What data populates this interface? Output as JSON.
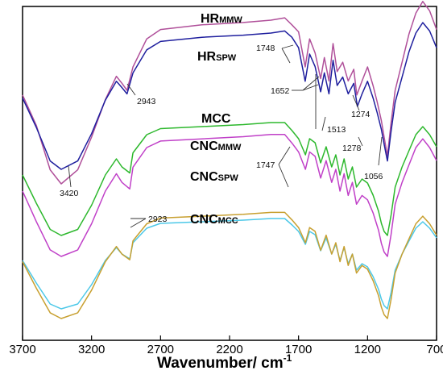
{
  "chart_data": {
    "type": "line",
    "xlabel": "Wavenumber/ cm",
    "xlabel_sup": "-1",
    "xlim": [
      3700,
      700
    ],
    "x_ticks": [
      3700,
      3200,
      2700,
      2200,
      1700,
      1200,
      700
    ],
    "y_ticks_shown": false,
    "legend": "labels placed above curves",
    "series": [
      {
        "name": "HR",
        "name_sub": "MMW",
        "color": "#b0509a",
        "x": [
          3700,
          3600,
          3500,
          3420,
          3300,
          3200,
          3100,
          3020,
          2980,
          2943,
          2900,
          2800,
          2700,
          2400,
          2100,
          1900,
          1800,
          1748,
          1700,
          1652,
          1620,
          1580,
          1540,
          1513,
          1480,
          1450,
          1420,
          1380,
          1340,
          1300,
          1278,
          1240,
          1200,
          1160,
          1130,
          1100,
          1080,
          1056,
          1030,
          1000,
          950,
          900,
          850,
          800,
          750,
          700
        ],
        "y": [
          38,
          25,
          6,
          0,
          6,
          20,
          36,
          46,
          43,
          40,
          50,
          62,
          66,
          68,
          69,
          70,
          71,
          68,
          65,
          50,
          62,
          56,
          45,
          54,
          44,
          60,
          48,
          52,
          44,
          49,
          38,
          44,
          50,
          42,
          35,
          27,
          20,
          12,
          26,
          40,
          52,
          64,
          73,
          78,
          74,
          66
        ]
      },
      {
        "name": "HR",
        "name_sub": "SPW",
        "color": "#1f1f9e",
        "x": [
          3700,
          3600,
          3500,
          3420,
          3300,
          3200,
          3100,
          3020,
          2980,
          2943,
          2900,
          2800,
          2700,
          2400,
          2100,
          1900,
          1800,
          1748,
          1700,
          1652,
          1620,
          1580,
          1540,
          1513,
          1480,
          1450,
          1420,
          1380,
          1340,
          1300,
          1274,
          1240,
          1200,
          1160,
          1130,
          1100,
          1080,
          1056,
          1030,
          1000,
          950,
          900,
          850,
          800,
          750,
          700
        ],
        "y": [
          34,
          20,
          4,
          0,
          4,
          17,
          33,
          42,
          39,
          36,
          46,
          57,
          61,
          63,
          64,
          65,
          66,
          63,
          58,
          42,
          55,
          49,
          37,
          46,
          36,
          52,
          40,
          44,
          36,
          41,
          30,
          36,
          42,
          34,
          27,
          19,
          12,
          4,
          18,
          32,
          44,
          56,
          65,
          70,
          66,
          58
        ]
      },
      {
        "name": "MCC",
        "color": "#2db82d",
        "x": [
          3700,
          3600,
          3500,
          3420,
          3300,
          3200,
          3100,
          3020,
          2980,
          2923,
          2900,
          2800,
          2700,
          2400,
          2100,
          1900,
          1800,
          1747,
          1700,
          1650,
          1620,
          1580,
          1540,
          1500,
          1460,
          1430,
          1400,
          1370,
          1340,
          1310,
          1280,
          1240,
          1200,
          1160,
          1120,
          1100,
          1080,
          1056,
          1030,
          1000,
          950,
          900,
          850,
          800,
          750,
          700
        ],
        "y": [
          30,
          16,
          3,
          0,
          3,
          15,
          30,
          38,
          34,
          31,
          41,
          50,
          53,
          54,
          55,
          56,
          56,
          52,
          48,
          40,
          48,
          46,
          36,
          44,
          34,
          40,
          30,
          38,
          28,
          34,
          24,
          28,
          26,
          20,
          12,
          6,
          2,
          0,
          10,
          24,
          34,
          42,
          50,
          54,
          50,
          44
        ]
      },
      {
        "name": "CNC",
        "name_sub": "MMW",
        "color": "#c040c8",
        "x": [
          3700,
          3600,
          3500,
          3420,
          3300,
          3200,
          3100,
          3020,
          2980,
          2923,
          2900,
          2800,
          2700,
          2400,
          2100,
          1900,
          1800,
          1747,
          1700,
          1650,
          1620,
          1580,
          1540,
          1500,
          1460,
          1430,
          1400,
          1370,
          1340,
          1310,
          1280,
          1240,
          1200,
          1160,
          1120,
          1100,
          1080,
          1056,
          1030,
          1000,
          950,
          900,
          850,
          800,
          750,
          700
        ],
        "y": [
          30,
          16,
          3,
          0,
          3,
          15,
          30,
          38,
          34,
          31,
          41,
          50,
          53,
          54,
          55,
          56,
          56,
          52,
          48,
          40,
          48,
          46,
          36,
          44,
          34,
          40,
          30,
          38,
          28,
          34,
          24,
          28,
          26,
          20,
          12,
          6,
          2,
          0,
          10,
          24,
          34,
          42,
          50,
          54,
          50,
          44
        ]
      },
      {
        "name": "CNC",
        "name_sub": "SPW",
        "color": "#4cc8e8",
        "x": [
          3700,
          3600,
          3500,
          3420,
          3300,
          3200,
          3100,
          3020,
          2980,
          2923,
          2900,
          2800,
          2700,
          2400,
          2100,
          1900,
          1800,
          1747,
          1700,
          1650,
          1620,
          1580,
          1540,
          1500,
          1460,
          1430,
          1400,
          1370,
          1340,
          1310,
          1280,
          1240,
          1200,
          1160,
          1120,
          1100,
          1080,
          1056,
          1030,
          1000,
          950,
          900,
          850,
          800,
          750,
          700
        ],
        "y": [
          30,
          16,
          3,
          0,
          3,
          15,
          30,
          38,
          34,
          31,
          41,
          50,
          53,
          54,
          55,
          56,
          56,
          52,
          48,
          40,
          48,
          46,
          36,
          44,
          34,
          40,
          30,
          38,
          28,
          34,
          24,
          28,
          26,
          20,
          12,
          6,
          2,
          0,
          10,
          24,
          34,
          42,
          50,
          54,
          50,
          44
        ]
      },
      {
        "name": "CNC",
        "name_sub": "MCC",
        "color": "#c8a030",
        "x": [
          3700,
          3600,
          3500,
          3420,
          3300,
          3200,
          3100,
          3020,
          2980,
          2923,
          2900,
          2800,
          2700,
          2400,
          2100,
          1900,
          1800,
          1747,
          1700,
          1650,
          1620,
          1580,
          1540,
          1500,
          1460,
          1430,
          1400,
          1370,
          1340,
          1310,
          1280,
          1240,
          1200,
          1160,
          1120,
          1100,
          1080,
          1056,
          1030,
          1000,
          950,
          900,
          850,
          800,
          750,
          700
        ],
        "y": [
          30,
          16,
          3,
          0,
          3,
          15,
          30,
          38,
          34,
          31,
          41,
          50,
          53,
          54,
          55,
          56,
          56,
          52,
          48,
          40,
          48,
          46,
          36,
          44,
          34,
          40,
          30,
          38,
          28,
          34,
          24,
          28,
          26,
          20,
          12,
          6,
          2,
          0,
          10,
          24,
          34,
          42,
          50,
          54,
          50,
          44
        ]
      }
    ],
    "annotations": [
      "2943",
      "1748",
      "1652",
      "1513",
      "1274",
      "1278",
      "1056",
      "3420",
      "1747",
      "2923"
    ]
  }
}
